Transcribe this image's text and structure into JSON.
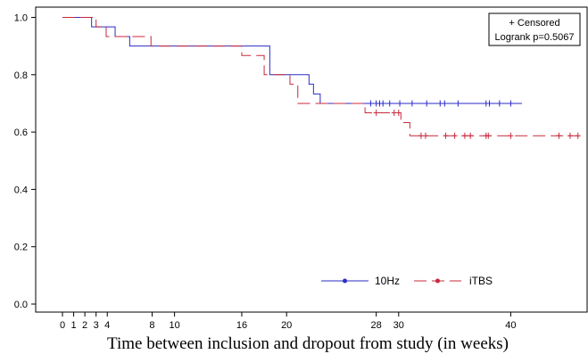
{
  "chart_data": {
    "type": "line",
    "xlabel": "Time between inclusion and dropout from study (in weeks)",
    "ylabel": "",
    "xlim": [
      -1,
      47
    ],
    "ylim": [
      -0.02,
      1.02
    ],
    "x_ticks": [
      0,
      1,
      2,
      3,
      4,
      8,
      10,
      16,
      20,
      28,
      30,
      40
    ],
    "y_ticks": [
      "0.0",
      "0.2",
      "0.4",
      "0.6",
      "0.8",
      "1.0"
    ],
    "annotation": [
      "+ Censored",
      "Logrank p=0.5067"
    ],
    "legend_position": "bottom-right",
    "series": [
      {
        "name": "10Hz",
        "color": "#2b2bc8",
        "dash": "solid",
        "steps": [
          [
            0,
            1.0
          ],
          [
            2.6,
            0.967
          ],
          [
            4.7,
            0.933
          ],
          [
            6,
            0.9
          ],
          [
            18.5,
            0.8
          ],
          [
            22,
            0.767
          ],
          [
            22.4,
            0.733
          ],
          [
            23,
            0.7
          ],
          [
            41,
            0.7
          ]
        ],
        "censored": [
          27.5,
          28,
          28.3,
          28.6,
          29.2,
          30.1,
          31.2,
          32.5,
          33.7,
          34.1,
          35.3,
          37.8,
          38.1,
          39,
          40
        ]
      },
      {
        "name": "iTBS",
        "color": "#c8283c",
        "dash": "dashed",
        "steps": [
          [
            0,
            1.0
          ],
          [
            3,
            0.967
          ],
          [
            3.9,
            0.933
          ],
          [
            7.9,
            0.9
          ],
          [
            16,
            0.867
          ],
          [
            18,
            0.8
          ],
          [
            20.3,
            0.767
          ],
          [
            21,
            0.7
          ],
          [
            27,
            0.667
          ],
          [
            30.2,
            0.633
          ],
          [
            31,
            0.587
          ],
          [
            46,
            0.587
          ]
        ],
        "censored": [
          28,
          29.6,
          30,
          32,
          32.4,
          34.2,
          35,
          35.9,
          36.4,
          37.8,
          38,
          40,
          44.3,
          45.3,
          46
        ]
      }
    ]
  }
}
